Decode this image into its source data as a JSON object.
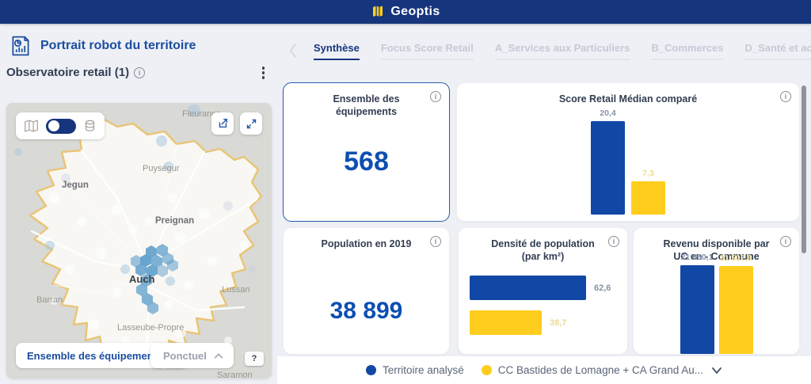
{
  "brand": {
    "name": "Geoptis"
  },
  "page": {
    "title": "Portrait robot du territoire",
    "section_title": "Observatoire retail (1)"
  },
  "tabs": {
    "items": [
      {
        "label": "Synthèse",
        "active": true
      },
      {
        "label": "Focus Score Retail",
        "active": false
      },
      {
        "label": "A_Services aux Particuliers",
        "active": false
      },
      {
        "label": "B_Commerces",
        "active": false
      },
      {
        "label": "D_Santé et action sociale",
        "active": false
      }
    ]
  },
  "map": {
    "labels": [
      "Fleurance",
      "Puységur",
      "Jegun",
      "Preignan",
      "Auch",
      "Barran",
      "Lussan",
      "Lasseube-Propre",
      "Saramon"
    ],
    "controls": {
      "layer_selector": "Ensemble des équipemen...",
      "display_mode": "Ponctuel",
      "help": "?"
    }
  },
  "cards": {
    "equipements": {
      "title": "Ensemble des équipements",
      "value": "568"
    },
    "score_retail": {
      "title": "Score Retail Médian comparé"
    },
    "population": {
      "title": "Population en 2019",
      "value": "38 899"
    },
    "densite": {
      "title": "Densité de population (par km²)"
    },
    "revenu": {
      "title": "Revenu disponible par UC en - Commune"
    }
  },
  "chart_data": [
    {
      "type": "bar",
      "orientation": "vertical",
      "title": "Score Retail Médian comparé",
      "categories": [
        "Territoire analysé",
        "CC Bastides de Lomagne + CA Grand Au..."
      ],
      "values": [
        20.4,
        7.3
      ],
      "value_labels": [
        "20,4",
        "7,3"
      ],
      "ylim": [
        0,
        20.4
      ],
      "grid": false,
      "legend_position": "bottom-shared"
    },
    {
      "type": "bar",
      "orientation": "horizontal",
      "title": "Densité de population (par km²)",
      "categories": [
        "Territoire analysé",
        "CC Bastides de Lomagne + CA Grand Au..."
      ],
      "values": [
        62.6,
        38.7
      ],
      "value_labels": [
        "62,6",
        "38,7"
      ],
      "xlim": [
        0,
        62.6
      ],
      "grid": false,
      "legend_position": "bottom-shared"
    },
    {
      "type": "bar",
      "orientation": "vertical",
      "title": "Revenu disponible par UC en - Commune",
      "categories": [
        "Territoire analysé",
        "CC Bastides de Lomagne + CA Grand Au..."
      ],
      "values": [
        21660.1,
        21507.6
      ],
      "value_labels": [
        "21 660,1",
        "21 507,6"
      ],
      "ylim": [
        0,
        21660.1
      ],
      "grid": false,
      "legend_position": "bottom-shared"
    }
  ],
  "legend": {
    "items": [
      {
        "label": "Territoire analysé",
        "color": "#1148a5"
      },
      {
        "label": "CC Bastides de Lomagne + CA Grand Au...",
        "color": "#ffcd1d"
      }
    ]
  },
  "colors": {
    "primary_blue": "#1148a5",
    "accent_yellow": "#ffcd1d",
    "header_blue": "#17357d",
    "blue_value_label": "#8494ab",
    "yellow_value_label": "#f0da92"
  }
}
